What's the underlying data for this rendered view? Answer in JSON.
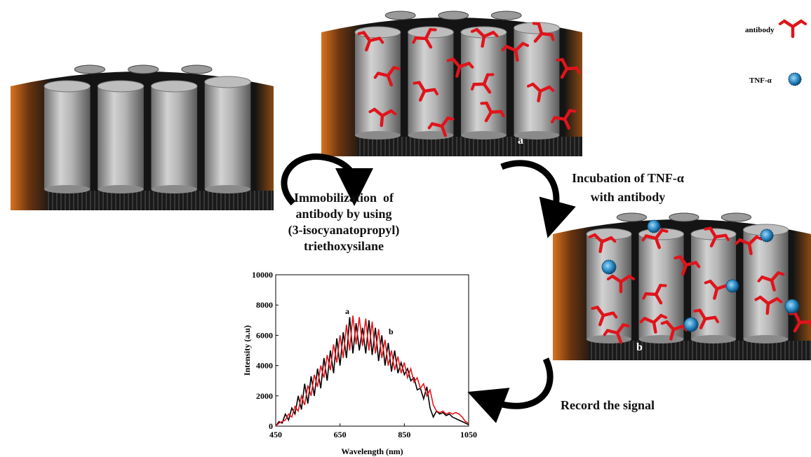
{
  "legend": {
    "antibody": "antibody",
    "tnf": "TNF-α"
  },
  "steps": {
    "immobilization": [
      "Immobilization  of",
      "antibody by using",
      "(3-isocyanatopropyl)",
      "triethoxysilane"
    ],
    "incubation": [
      "Incubation of TNF-α",
      "with antibody"
    ],
    "record": "Record the signal"
  },
  "panels": {
    "a": "a",
    "b": "b"
  },
  "chart_data": {
    "type": "line",
    "x_label": "Wavelength (nm)",
    "y_label": "Intensity (a.u)",
    "xlim": [
      450,
      1050
    ],
    "xticks": [
      450,
      650,
      850,
      1050
    ],
    "ylim": [
      0,
      10000
    ],
    "yticks": [
      0,
      2000,
      4000,
      6000,
      8000,
      10000
    ],
    "annotations": [
      "a",
      "b"
    ],
    "x": [
      450,
      460,
      470,
      480,
      490,
      500,
      510,
      520,
      530,
      540,
      550,
      560,
      570,
      580,
      590,
      600,
      610,
      620,
      630,
      640,
      650,
      660,
      670,
      680,
      690,
      700,
      710,
      720,
      730,
      740,
      750,
      760,
      770,
      780,
      790,
      800,
      810,
      820,
      830,
      840,
      850,
      860,
      870,
      880,
      890,
      900,
      910,
      920,
      930,
      940,
      950,
      960,
      970,
      980,
      990,
      1000,
      1010,
      1020,
      1030,
      1040,
      1050
    ],
    "series": [
      {
        "name": "a",
        "color": "#000000",
        "values": [
          0,
          300,
          200,
          800,
          400,
          1200,
          800,
          2000,
          1100,
          2800,
          1500,
          3300,
          2000,
          3800,
          2500,
          4500,
          3000,
          5000,
          3500,
          5800,
          4000,
          6200,
          4500,
          7200,
          4800,
          6800,
          5000,
          6500,
          4800,
          7000,
          4700,
          6500,
          4300,
          6000,
          4000,
          5500,
          3600,
          5000,
          3500,
          4200,
          3400,
          3800,
          3000,
          3200,
          2400,
          2500,
          1800,
          2600,
          1200,
          600,
          1000,
          800,
          900,
          700,
          800,
          600,
          500,
          400,
          300,
          200,
          100
        ]
      },
      {
        "name": "b",
        "color": "#e8151b",
        "values": [
          0,
          200,
          300,
          400,
          800,
          600,
          1300,
          1000,
          2000,
          1400,
          2700,
          2000,
          3400,
          2600,
          4000,
          3200,
          4700,
          3700,
          5400,
          4200,
          6000,
          4500,
          6700,
          5000,
          7300,
          5400,
          7200,
          5300,
          7100,
          5000,
          6900,
          4800,
          6400,
          4500,
          5700,
          4000,
          5000,
          3700,
          4600,
          3500,
          4200,
          3200,
          3800,
          2900,
          3200,
          2500,
          2800,
          2000,
          2400,
          1400,
          1000,
          900,
          1000,
          800,
          900,
          800,
          900,
          800,
          600,
          300,
          200
        ]
      }
    ]
  }
}
